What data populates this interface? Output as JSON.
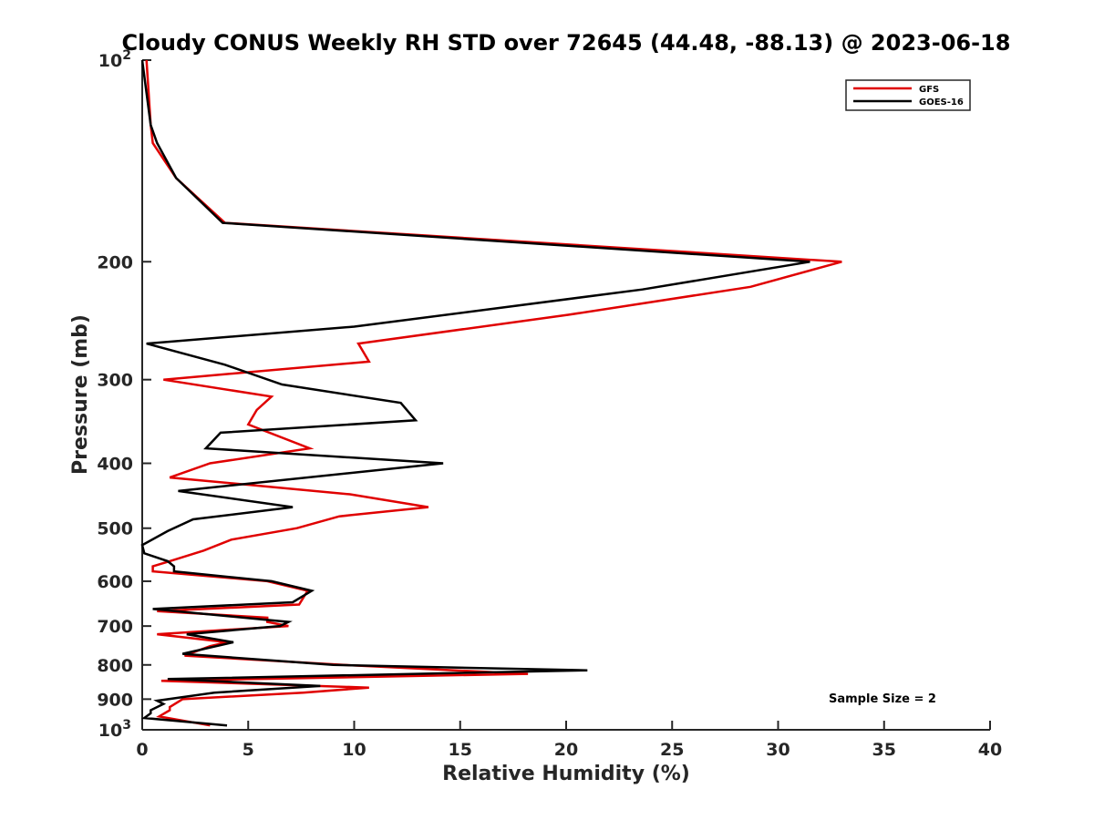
{
  "chart_data": {
    "type": "line",
    "title": "Cloudy CONUS Weekly RH STD over 72645 (44.48, -88.13) @ 2023-06-18",
    "xlabel": "Relative Humidity (%)",
    "ylabel": "Pressure (mb)",
    "xlim": [
      0,
      40
    ],
    "ylim": [
      100,
      1000
    ],
    "y_scale": "log",
    "y_reversed": true,
    "grid": false,
    "legend_position": "top-right",
    "x_ticks": [
      "0",
      "5",
      "10",
      "15",
      "20",
      "25",
      "30",
      "35",
      "40"
    ],
    "y_ticks": [
      {
        "value": 100,
        "label": "10",
        "exp": "2"
      },
      {
        "value": 200,
        "label": "200",
        "exp": ""
      },
      {
        "value": 300,
        "label": "300",
        "exp": ""
      },
      {
        "value": 400,
        "label": "400",
        "exp": ""
      },
      {
        "value": 500,
        "label": "500",
        "exp": ""
      },
      {
        "value": 600,
        "label": "600",
        "exp": ""
      },
      {
        "value": 700,
        "label": "700",
        "exp": ""
      },
      {
        "value": 800,
        "label": "800",
        "exp": ""
      },
      {
        "value": 900,
        "label": "900",
        "exp": ""
      },
      {
        "value": 1000,
        "label": "10",
        "exp": "3"
      }
    ],
    "annotation": "Sample Size = 2",
    "series": [
      {
        "name": "GFS",
        "color": "#e00000",
        "points": [
          [
            0.2,
            100
          ],
          [
            0.4,
            125
          ],
          [
            0.5,
            133
          ],
          [
            1.6,
            150
          ],
          [
            3.9,
            175
          ],
          [
            33,
            200
          ],
          [
            28.7,
            218
          ],
          [
            20.1,
            240
          ],
          [
            10.2,
            265
          ],
          [
            10.7,
            282
          ],
          [
            1.0,
            300
          ],
          [
            6.1,
            318
          ],
          [
            5.4,
            333
          ],
          [
            5.0,
            350
          ],
          [
            7.9,
            380
          ],
          [
            3.2,
            400
          ],
          [
            1.3,
            420
          ],
          [
            9.8,
            445
          ],
          [
            13.5,
            465
          ],
          [
            9.3,
            480
          ],
          [
            7.3,
            500
          ],
          [
            4.2,
            520
          ],
          [
            2.9,
            540
          ],
          [
            1.3,
            560
          ],
          [
            0.5,
            570
          ],
          [
            0.5,
            580
          ],
          [
            5.9,
            600
          ],
          [
            7.8,
            620
          ],
          [
            7.4,
            650
          ],
          [
            0.7,
            665
          ],
          [
            5.9,
            680
          ],
          [
            5.9,
            690
          ],
          [
            6.9,
            700
          ],
          [
            0.7,
            720
          ],
          [
            4.0,
            740
          ],
          [
            3.2,
            750
          ],
          [
            2.0,
            775
          ],
          [
            9.5,
            800
          ],
          [
            18.2,
            825
          ],
          [
            0.9,
            845
          ],
          [
            10.7,
            865
          ],
          [
            7.6,
            880
          ],
          [
            1.9,
            900
          ],
          [
            1.3,
            925
          ],
          [
            1.3,
            935
          ],
          [
            0.8,
            955
          ],
          [
            3.2,
            985
          ]
        ]
      },
      {
        "name": "GOES-16",
        "color": "#000000",
        "points": [
          [
            0,
            100
          ],
          [
            0.4,
            125
          ],
          [
            0.7,
            133
          ],
          [
            1.6,
            150
          ],
          [
            3.8,
            175
          ],
          [
            31.5,
            200
          ],
          [
            23.6,
            220
          ],
          [
            10.0,
            250
          ],
          [
            0.2,
            265
          ],
          [
            3.9,
            285
          ],
          [
            6.6,
            305
          ],
          [
            12.2,
            325
          ],
          [
            12.9,
            345
          ],
          [
            3.7,
            360
          ],
          [
            3.0,
            380
          ],
          [
            14.2,
            400
          ],
          [
            1.7,
            440
          ],
          [
            7.1,
            465
          ],
          [
            2.4,
            485
          ],
          [
            1.2,
            505
          ],
          [
            0,
            530
          ],
          [
            0.1,
            545
          ],
          [
            1.2,
            560
          ],
          [
            1.5,
            570
          ],
          [
            1.5,
            580
          ],
          [
            6.1,
            600
          ],
          [
            8.0,
            620
          ],
          [
            7.1,
            645
          ],
          [
            0.5,
            660
          ],
          [
            6.9,
            690
          ],
          [
            6.5,
            700
          ],
          [
            2.1,
            720
          ],
          [
            4.3,
            740
          ],
          [
            1.9,
            770
          ],
          [
            9.0,
            800
          ],
          [
            21.0,
            815
          ],
          [
            1.2,
            840
          ],
          [
            8.4,
            860
          ],
          [
            3.4,
            880
          ],
          [
            0.7,
            905
          ],
          [
            1.0,
            915
          ],
          [
            0.4,
            935
          ],
          [
            0.4,
            945
          ],
          [
            0.1,
            960
          ],
          [
            4.0,
            985
          ]
        ]
      }
    ]
  }
}
